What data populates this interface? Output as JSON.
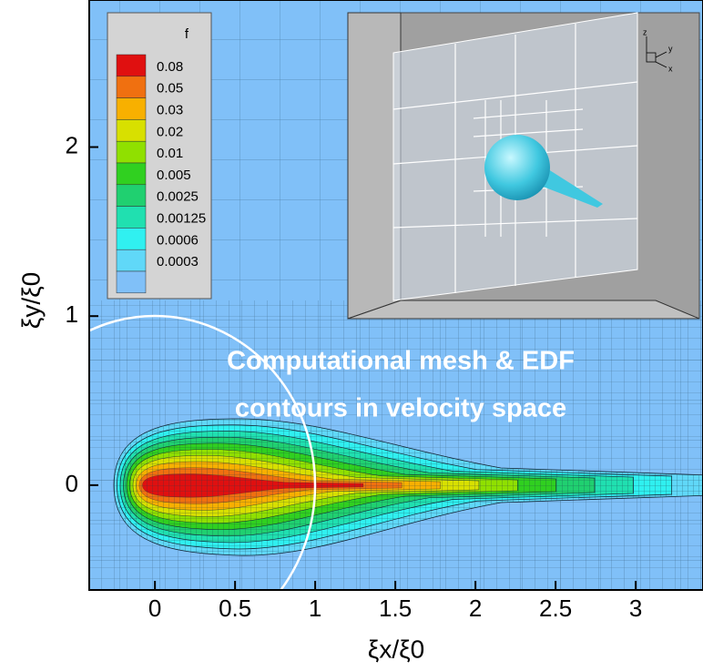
{
  "chart_data": {
    "type": "contour",
    "x_label": "ξx/ξ0",
    "y_label": "ξy/ξ0",
    "xlim": [
      -0.41,
      3.42
    ],
    "ylim": [
      -0.62,
      2.87
    ],
    "xticks": [
      0,
      0.5,
      1,
      1.5,
      2,
      2.5,
      3
    ],
    "yticks": [
      0,
      1,
      2
    ],
    "legend": {
      "title": "f",
      "levels": [
        0.08,
        0.05,
        0.03,
        0.02,
        0.01,
        0.005,
        0.0025,
        0.00125,
        0.0006,
        0.0003
      ],
      "colors": [
        "#e01010",
        "#f07010",
        "#f8b000",
        "#d8e000",
        "#90e000",
        "#30d020",
        "#20d070",
        "#20e0b0",
        "#30f0f0",
        "#60d8f8",
        "#80c0f8"
      ]
    },
    "annotation": [
      "Computational mesh & EDF",
      "contours in velocity space"
    ],
    "inset_axis_labels": [
      "z",
      "y",
      "x"
    ]
  }
}
